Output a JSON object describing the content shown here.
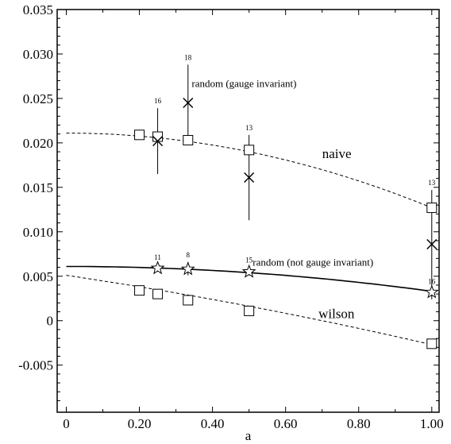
{
  "chart_data": {
    "type": "scatter",
    "title": "",
    "xlabel": "a",
    "ylabel": "",
    "xlim": [
      -0.025,
      1.02
    ],
    "ylim": [
      -0.0103,
      0.035
    ],
    "x_ticks": [
      0,
      0.2,
      0.4,
      0.6,
      0.8,
      1.0
    ],
    "x_tick_labels": [
      "0",
      "0.20",
      "0.40",
      "0.60",
      "0.80",
      "1.00"
    ],
    "y_ticks": [
      -0.005,
      0,
      0.005,
      0.01,
      0.015,
      0.02,
      0.025,
      0.03,
      0.035
    ],
    "y_tick_labels": [
      "-0.005",
      "0",
      "0.005",
      "0.010",
      "0.015",
      "0.020",
      "0.025",
      "0.030",
      "0.035"
    ],
    "grid": false,
    "series": [
      {
        "marker": "square",
        "points": [
          {
            "x": 0.2,
            "y": 0.0209
          },
          {
            "x": 0.25,
            "y": 0.0207
          },
          {
            "x": 0.333,
            "y": 0.0203
          },
          {
            "x": 0.5,
            "y": 0.0192
          },
          {
            "x": 1.0,
            "y": 0.0127
          }
        ]
      },
      {
        "marker": "cross",
        "points": [
          {
            "x": 0.25,
            "y": 0.0202,
            "err_low": 0.0165,
            "err_high": 0.0239,
            "count": "16"
          },
          {
            "x": 0.333,
            "y": 0.0245,
            "err_low": 0.0202,
            "err_high": 0.0288,
            "count": "18"
          },
          {
            "x": 0.5,
            "y": 0.0161,
            "err_low": 0.0113,
            "err_high": 0.0209,
            "count": "13"
          },
          {
            "x": 1.0,
            "y": 0.0086,
            "err_low": 0.0024,
            "err_high": 0.0147,
            "count": "13"
          }
        ]
      },
      {
        "marker": "star",
        "points": [
          {
            "x": 0.25,
            "y": 0.0059,
            "err_low": 0.0055,
            "err_high": 0.0063,
            "count": "11"
          },
          {
            "x": 0.333,
            "y": 0.0058,
            "err_low": 0.0051,
            "err_high": 0.0066,
            "count": "8"
          },
          {
            "x": 0.5,
            "y": 0.0055,
            "err_low": 0.0051,
            "err_high": 0.006,
            "count": "15"
          },
          {
            "x": 1.0,
            "y": 0.0032,
            "err_low": 0.0028,
            "err_high": 0.0036,
            "count": "16"
          }
        ]
      },
      {
        "marker": "square",
        "points": [
          {
            "x": 0.2,
            "y": 0.0034
          },
          {
            "x": 0.25,
            "y": 0.003
          },
          {
            "x": 0.333,
            "y": 0.0023
          },
          {
            "x": 0.5,
            "y": 0.0011
          },
          {
            "x": 1.0,
            "y": -0.0026
          }
        ]
      }
    ],
    "fits": [
      {
        "style": "dashed",
        "coef": [
          0.0211,
          0,
          -0.0084
        ],
        "x_range": [
          0,
          1
        ]
      },
      {
        "style": "solid",
        "coef": [
          0.0061,
          0,
          -0.0028
        ],
        "x_range": [
          0,
          1
        ]
      },
      {
        "style": "dashed",
        "coef": [
          0.0051,
          -0.0061,
          -0.0017
        ],
        "x_range": [
          0,
          1
        ]
      }
    ],
    "annotations": [
      {
        "text": "naive",
        "x": 0.7,
        "y": 0.0183,
        "cls": "series-label"
      },
      {
        "text": "wilson",
        "x": 0.69,
        "y": 0.0003,
        "cls": "series-label"
      },
      {
        "text": "random (gauge invariant)",
        "x": 0.343,
        "y": 0.0263,
        "cls": "annot"
      },
      {
        "text": "random (not gauge invariant)",
        "x": 0.51,
        "y": 0.0062,
        "cls": "annot"
      }
    ]
  }
}
